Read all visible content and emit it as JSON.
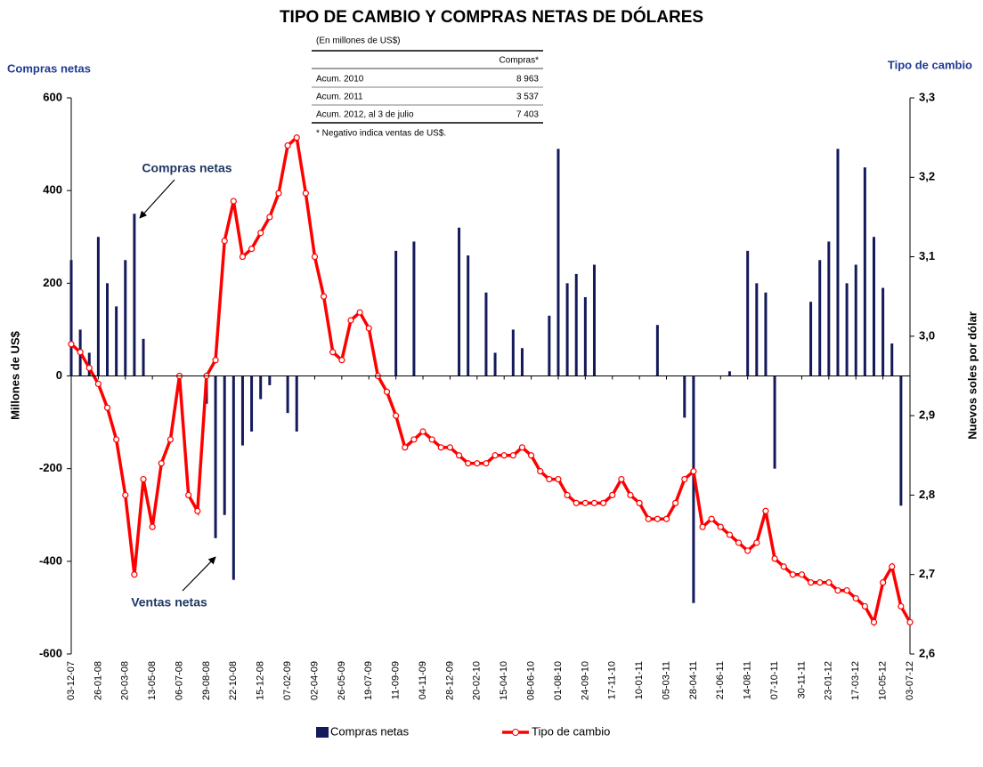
{
  "chart_data": {
    "type": "bar-line",
    "title": "TIPO DE CAMBIO Y COMPRAS NETAS DE DÓLARES",
    "y_label_top": "Compras netas",
    "y2_label_top": "Tipo de cambio",
    "y_label": "Millones de US$",
    "y2_label": "Nuevos soles por dólar",
    "annotations": [
      "Compras netas",
      "Ventas netas"
    ],
    "table": {
      "caption": "(En millones de US$)",
      "header": "Compras*",
      "rows": [
        [
          "Acum. 2010",
          "8 963"
        ],
        [
          "Acum. 2011",
          "3 537"
        ],
        [
          "Acum. 2012, al 3 de julio",
          "7 403"
        ]
      ],
      "note": "* Negativo indica ventas de US$."
    },
    "categories": [
      "03-12-07",
      null,
      null,
      "26-01-08",
      null,
      null,
      "20-03-08",
      null,
      null,
      "13-05-08",
      null,
      null,
      "06-07-08",
      null,
      null,
      "29-08-08",
      null,
      null,
      "22-10-08",
      null,
      null,
      "15-12-08",
      null,
      null,
      "07-02-09",
      null,
      null,
      "02-04-09",
      null,
      null,
      "26-05-09",
      null,
      null,
      "19-07-09",
      null,
      null,
      "11-09-09",
      null,
      null,
      "04-11-09",
      null,
      null,
      "28-12-09",
      null,
      null,
      "20-02-10",
      null,
      null,
      "15-04-10",
      null,
      null,
      "08-06-10",
      null,
      null,
      "01-08-10",
      null,
      null,
      "24-09-10",
      null,
      null,
      "17-11-10",
      null,
      null,
      "10-01-11",
      null,
      null,
      "05-03-11",
      null,
      null,
      "28-04-11",
      null,
      null,
      "21-06-11",
      null,
      null,
      "14-08-11",
      null,
      null,
      "07-10-11",
      null,
      null,
      "30-11-11",
      null,
      null,
      "23-01-12",
      null,
      null,
      "17-03-12",
      null,
      null,
      "10-05-12",
      null,
      null,
      "03-07-12"
    ],
    "series": [
      {
        "name": "Compras netas",
        "type": "bar",
        "color": "#141a5a",
        "values": [
          250,
          100,
          50,
          300,
          200,
          150,
          250,
          350,
          80,
          0,
          0,
          0,
          0,
          0,
          0,
          -60,
          -350,
          -300,
          -440,
          -150,
          -120,
          -50,
          -20,
          0,
          -80,
          -120,
          0,
          0,
          0,
          0,
          0,
          0,
          0,
          0,
          0,
          0,
          270,
          0,
          290,
          0,
          0,
          0,
          0,
          320,
          260,
          0,
          180,
          50,
          0,
          100,
          60,
          0,
          0,
          130,
          490,
          200,
          220,
          170,
          240,
          0,
          0,
          0,
          0,
          0,
          0,
          110,
          0,
          0,
          -90,
          -490,
          0,
          0,
          0,
          10,
          0,
          270,
          200,
          180,
          -200,
          0,
          0,
          0,
          160,
          250,
          290,
          490,
          200,
          240,
          450,
          300,
          190,
          70,
          -280,
          0
        ]
      },
      {
        "name": "Tipo de cambio",
        "type": "line",
        "axis": "y2",
        "color": "#ff0000",
        "values": [
          2.99,
          2.98,
          2.96,
          2.94,
          2.91,
          2.87,
          2.8,
          2.7,
          2.82,
          2.76,
          2.84,
          2.87,
          2.95,
          2.8,
          2.78,
          2.95,
          2.97,
          3.12,
          3.17,
          3.1,
          3.11,
          3.13,
          3.15,
          3.18,
          3.24,
          3.25,
          3.18,
          3.1,
          3.05,
          2.98,
          2.97,
          3.02,
          3.03,
          3.01,
          2.95,
          2.93,
          2.9,
          2.86,
          2.87,
          2.88,
          2.87,
          2.86,
          2.86,
          2.85,
          2.84,
          2.84,
          2.84,
          2.85,
          2.85,
          2.85,
          2.86,
          2.85,
          2.83,
          2.82,
          2.82,
          2.8,
          2.79,
          2.79,
          2.79,
          2.79,
          2.8,
          2.82,
          2.8,
          2.79,
          2.77,
          2.77,
          2.77,
          2.79,
          2.82,
          2.83,
          2.76,
          2.77,
          2.76,
          2.75,
          2.74,
          2.73,
          2.74,
          2.78,
          2.72,
          2.71,
          2.7,
          2.7,
          2.69,
          2.69,
          2.69,
          2.68,
          2.68,
          2.67,
          2.66,
          2.64,
          2.69,
          2.71,
          2.66,
          2.64
        ]
      }
    ],
    "ylim": [
      -600,
      600
    ],
    "yticks": [
      -600,
      -400,
      -200,
      0,
      200,
      400,
      600
    ],
    "y2lim": [
      2.6,
      3.3
    ],
    "y2ticks": [
      {
        "value": 2.6,
        "label": "2,6"
      },
      {
        "value": 2.7,
        "label": "2,7"
      },
      {
        "value": 2.8,
        "label": "2,8"
      },
      {
        "value": 2.9,
        "label": "2,9"
      },
      {
        "value": 3.0,
        "label": "3,0"
      },
      {
        "value": 3.1,
        "label": "3,1"
      },
      {
        "value": 3.2,
        "label": "3,2"
      },
      {
        "value": 3.3,
        "label": "3,3"
      }
    ],
    "legend": "bottom"
  }
}
